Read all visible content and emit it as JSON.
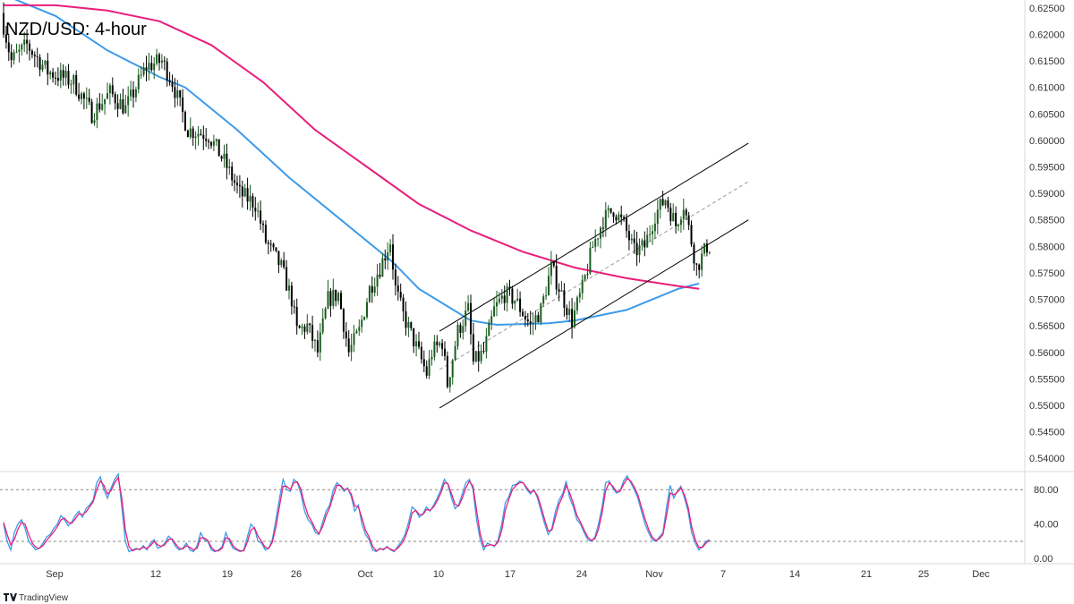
{
  "title": "NZD/USD: 4-hour",
  "brand": "TradingView",
  "colors": {
    "up": "#1b5e20",
    "down": "#000000",
    "ma_fast": "#3d9be9",
    "ma_slow": "#e91e7a",
    "stoch_k": "#3d9be9",
    "stoch_d": "#e91e7a",
    "channel": "#000000",
    "channel_mid": "#999999"
  },
  "chart_data": [
    {
      "type": "candlestick",
      "title": "NZD/USD: 4-hour",
      "ylim": [
        0.5375,
        0.6265
      ],
      "y_ticks": [
        "0.62500",
        "0.62000",
        "0.61500",
        "0.61000",
        "0.60500",
        "0.60000",
        "0.59500",
        "0.59000",
        "0.58500",
        "0.58000",
        "0.57500",
        "0.57000",
        "0.56500",
        "0.56000",
        "0.55500",
        "0.55000",
        "0.54500",
        "0.54000"
      ],
      "x_ticks": [
        "Sep",
        "12",
        "19",
        "26",
        "Oct",
        "10",
        "17",
        "24",
        "Nov",
        "7",
        "14",
        "21",
        "25",
        "Dec"
      ],
      "price_path": [
        [
          0,
          0.624
        ],
        [
          4,
          0.615
        ],
        [
          10,
          0.618
        ],
        [
          18,
          0.613
        ],
        [
          28,
          0.611
        ],
        [
          35,
          0.605
        ],
        [
          42,
          0.609
        ],
        [
          48,
          0.606
        ],
        [
          56,
          0.614
        ],
        [
          62,
          0.615
        ],
        [
          66,
          0.611
        ],
        [
          72,
          0.602
        ],
        [
          80,
          0.601
        ],
        [
          86,
          0.596
        ],
        [
          92,
          0.59
        ],
        [
          98,
          0.588
        ],
        [
          102,
          0.581
        ],
        [
          108,
          0.576
        ],
        [
          112,
          0.57
        ],
        [
          114,
          0.564
        ],
        [
          118,
          0.565
        ],
        [
          122,
          0.56
        ],
        [
          126,
          0.57
        ],
        [
          130,
          0.571
        ],
        [
          134,
          0.56
        ],
        [
          138,
          0.564
        ],
        [
          142,
          0.572
        ],
        [
          146,
          0.576
        ],
        [
          150,
          0.581
        ],
        [
          152,
          0.572
        ],
        [
          155,
          0.567
        ],
        [
          160,
          0.561
        ],
        [
          164,
          0.556
        ],
        [
          166,
          0.56
        ],
        [
          170,
          0.562
        ],
        [
          172,
          0.554
        ],
        [
          176,
          0.564
        ],
        [
          180,
          0.568
        ],
        [
          182,
          0.558
        ],
        [
          186,
          0.56
        ],
        [
          190,
          0.568
        ],
        [
          194,
          0.571
        ],
        [
          198,
          0.57
        ],
        [
          204,
          0.565
        ],
        [
          208,
          0.568
        ],
        [
          212,
          0.576
        ],
        [
          216,
          0.571
        ],
        [
          220,
          0.566
        ],
        [
          224,
          0.572
        ],
        [
          228,
          0.58
        ],
        [
          232,
          0.585
        ],
        [
          236,
          0.587
        ],
        [
          240,
          0.584
        ],
        [
          244,
          0.579
        ],
        [
          248,
          0.58
        ],
        [
          252,
          0.586
        ],
        [
          256,
          0.589
        ],
        [
          260,
          0.584
        ],
        [
          263,
          0.588
        ],
        [
          266,
          0.581
        ],
        [
          268,
          0.576
        ],
        [
          270,
          0.578
        ],
        [
          272,
          0.58
        ]
      ],
      "candle_count": 273,
      "moving_averages": [
        {
          "name": "",
          "color": "#3d9be9",
          "points": [
            [
              0,
              0.6275
            ],
            [
              20,
              0.6235
            ],
            [
              40,
              0.617
            ],
            [
              60,
              0.612
            ],
            [
              70,
              0.61
            ],
            [
              90,
              0.602
            ],
            [
              110,
              0.593
            ],
            [
              130,
              0.585
            ],
            [
              150,
              0.577
            ],
            [
              160,
              0.572
            ],
            [
              170,
              0.569
            ],
            [
              180,
              0.566
            ],
            [
              190,
              0.5652
            ],
            [
              210,
              0.5655
            ],
            [
              220,
              0.566
            ],
            [
              240,
              0.568
            ],
            [
              250,
              0.57
            ],
            [
              260,
              0.572
            ],
            [
              268,
              0.573
            ]
          ]
        },
        {
          "name": "",
          "color": "#e91e7a",
          "points": [
            [
              0,
              0.6255
            ],
            [
              20,
              0.6255
            ],
            [
              40,
              0.6245
            ],
            [
              60,
              0.6225
            ],
            [
              80,
              0.618
            ],
            [
              100,
              0.611
            ],
            [
              120,
              0.602
            ],
            [
              140,
              0.595
            ],
            [
              160,
              0.588
            ],
            [
              180,
              0.583
            ],
            [
              200,
              0.579
            ],
            [
              220,
              0.576
            ],
            [
              240,
              0.574
            ],
            [
              260,
              0.5725
            ],
            [
              268,
              0.572
            ]
          ]
        }
      ],
      "channel": {
        "lower": [
          [
            0.5495,
            0.585
          ]
        ],
        "upper": [
          [
            0.564,
            0.5995
          ]
        ],
        "x_start_index": 168,
        "x_end_index": 287
      }
    },
    {
      "type": "line",
      "title": "",
      "ylim": [
        -6,
        101
      ],
      "y_ticks": [
        "80.00",
        "40.00",
        "0.00"
      ],
      "levels": [
        80,
        20
      ],
      "series": [
        {
          "name": "",
          "color": "#3d9be9",
          "values": [
            40,
            20,
            10,
            30,
            40,
            45,
            35,
            20,
            15,
            10,
            12,
            18,
            25,
            28,
            35,
            40,
            50,
            45,
            38,
            42,
            50,
            55,
            48,
            58,
            62,
            68,
            88,
            95,
            80,
            70,
            82,
            92,
            98,
            60,
            20,
            8,
            10,
            12,
            10,
            15,
            10,
            18,
            22,
            12,
            14,
            18,
            26,
            22,
            14,
            10,
            12,
            18,
            10,
            8,
            15,
            30,
            22,
            20,
            10,
            8,
            10,
            14,
            30,
            20,
            12,
            10,
            8,
            10,
            25,
            40,
            35,
            20,
            18,
            10,
            12,
            22,
            45,
            70,
            92,
            80,
            78,
            92,
            88,
            75,
            55,
            45,
            40,
            30,
            28,
            42,
            55,
            62,
            80,
            88,
            84,
            78,
            82,
            72,
            55,
            62,
            40,
            28,
            22,
            10,
            8,
            12,
            10,
            14,
            10,
            8,
            14,
            20,
            28,
            42,
            60,
            56,
            48,
            52,
            60,
            55,
            62,
            70,
            80,
            92,
            86,
            70,
            58,
            62,
            75,
            88,
            92,
            80,
            45,
            22,
            10,
            18,
            16,
            14,
            22,
            40,
            65,
            72,
            85,
            86,
            90,
            88,
            80,
            75,
            80,
            70,
            55,
            40,
            28,
            35,
            55,
            68,
            75,
            90,
            70,
            60,
            45,
            40,
            30,
            22,
            20,
            25,
            40,
            60,
            88,
            90,
            82,
            76,
            78,
            90,
            96,
            88,
            80,
            70,
            55,
            40,
            30,
            22,
            20,
            25,
            30,
            60,
            85,
            70,
            78,
            84,
            70,
            55,
            30,
            18,
            10,
            14,
            20,
            22
          ]
        },
        {
          "name": "",
          "color": "#e91e7a",
          "values": [
            42,
            28,
            16,
            22,
            34,
            42,
            40,
            28,
            18,
            13,
            12,
            15,
            21,
            26,
            31,
            37,
            45,
            47,
            42,
            41,
            46,
            52,
            51,
            54,
            60,
            66,
            80,
            90,
            85,
            75,
            79,
            88,
            94,
            70,
            33,
            14,
            9,
            11,
            11,
            13,
            12,
            15,
            20,
            16,
            14,
            16,
            22,
            23,
            17,
            12,
            11,
            15,
            13,
            10,
            12,
            24,
            24,
            21,
            13,
            9,
            9,
            12,
            24,
            23,
            15,
            11,
            9,
            9,
            19,
            33,
            36,
            26,
            20,
            13,
            12,
            19,
            37,
            61,
            84,
            84,
            80,
            88,
            89,
            80,
            63,
            50,
            43,
            34,
            29,
            37,
            50,
            59,
            73,
            85,
            85,
            80,
            81,
            75,
            61,
            60,
            47,
            33,
            25,
            14,
            9,
            11,
            11,
            13,
            11,
            9,
            12,
            17,
            24,
            36,
            53,
            56,
            51,
            51,
            57,
            56,
            60,
            67,
            76,
            88,
            87,
            75,
            63,
            61,
            70,
            82,
            90,
            84,
            56,
            29,
            14,
            15,
            16,
            15,
            19,
            33,
            56,
            69,
            80,
            85,
            88,
            88,
            82,
            77,
            79,
            73,
            60,
            45,
            32,
            33,
            48,
            63,
            72,
            85,
            76,
            64,
            50,
            42,
            33,
            25,
            21,
            23,
            34,
            53,
            79,
            88,
            84,
            78,
            78,
            86,
            93,
            90,
            83,
            74,
            60,
            46,
            34,
            25,
            21,
            23,
            28,
            50,
            76,
            74,
            77,
            82,
            74,
            60,
            37,
            22,
            13,
            13,
            18,
            21
          ]
        }
      ]
    }
  ]
}
